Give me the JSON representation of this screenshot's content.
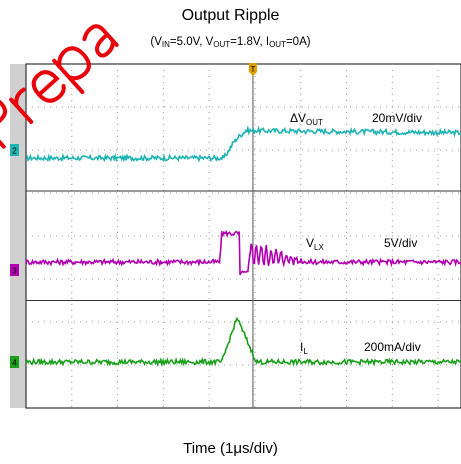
{
  "chart_data": {
    "type": "line",
    "title": "Output Ripple",
    "subtitle": {
      "parts": [
        {
          "t": "(V"
        },
        {
          "t": "IN",
          "sub": true
        },
        {
          "t": "=5.0V, V"
        },
        {
          "t": "OUT",
          "sub": true
        },
        {
          "t": "=1.8V, I"
        },
        {
          "t": "OUT",
          "sub": true
        },
        {
          "t": "=0A)"
        }
      ]
    },
    "xlabel": "Time (1μs/div)",
    "x_unit_per_div": "1μs",
    "x_divisions": 10,
    "grid": true,
    "trigger_marker": "T",
    "series": [
      {
        "name": "ΔVOUT",
        "label_parts": [
          {
            "t": "ΔV"
          },
          {
            "t": "OUT",
            "sub": true
          }
        ],
        "scale": "20mV/div",
        "channel": "2",
        "color": "#1fb3b3",
        "points": [
          [
            0,
            0
          ],
          [
            4.55,
            0
          ],
          [
            4.8,
            0.8
          ],
          [
            5.05,
            1.25
          ],
          [
            10,
            1.15
          ]
        ]
      },
      {
        "name": "VLX",
        "label_parts": [
          {
            "t": "V"
          },
          {
            "t": "LX",
            "sub": true
          }
        ],
        "scale": "5V/div",
        "channel": "3",
        "color": "#b000b0",
        "points": [
          [
            0,
            0
          ],
          [
            4.45,
            0
          ],
          [
            4.5,
            1.3
          ],
          [
            4.9,
            1.3
          ],
          [
            4.92,
            -0.5
          ],
          [
            5.1,
            -0.5
          ],
          [
            5.15,
            0.4
          ],
          [
            6.5,
            0
          ],
          [
            10,
            0
          ]
        ]
      },
      {
        "name": "IL",
        "label_parts": [
          {
            "t": "I"
          },
          {
            "t": "L",
            "sub": true
          }
        ],
        "scale": "200mA/div",
        "channel": "4",
        "color": "#1aa01a",
        "points": [
          [
            0,
            0
          ],
          [
            4.5,
            0
          ],
          [
            4.85,
            2.0
          ],
          [
            5.3,
            0
          ],
          [
            10,
            0
          ]
        ]
      }
    ]
  },
  "watermark": {
    "text": "Preparation",
    "color": "#e8000a"
  }
}
